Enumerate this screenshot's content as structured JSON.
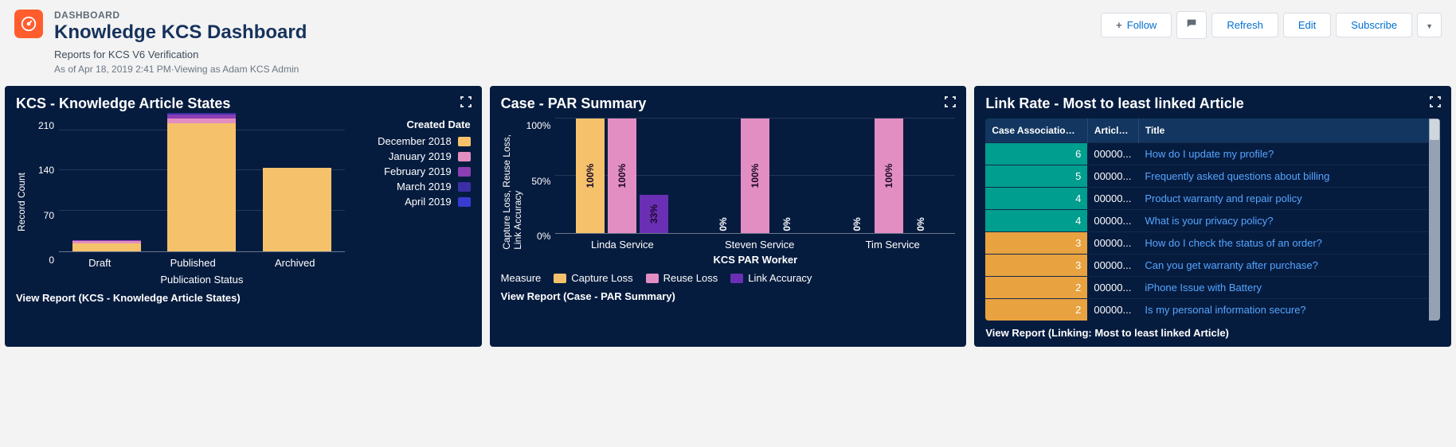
{
  "header": {
    "eyebrow": "DASHBOARD",
    "title": "Knowledge KCS Dashboard",
    "subtitle": "Reports for KCS V6 Verification",
    "timestamp": "As of Apr 18, 2019 2:41 PM·Viewing as Adam KCS Admin"
  },
  "actions": {
    "follow": "Follow",
    "refresh": "Refresh",
    "edit": "Edit",
    "subscribe": "Subscribe"
  },
  "colors": {
    "dec2018": "#f5c26b",
    "jan2019": "#e38ec2",
    "feb2019": "#8b3fb2",
    "mar2019": "#3b2fa6",
    "apr2019": "#3a3bd1",
    "captureLoss": "#f5c26b",
    "reuseLoss": "#e38ec2",
    "linkAccuracy": "#6a2fb5",
    "teal": "#009e8e",
    "orange": "#e8a23f",
    "link": "#56a5ff"
  },
  "panel1": {
    "title": "KCS - Knowledge Article States",
    "legend_title": "Created Date",
    "legend": [
      "December 2018",
      "January 2019",
      "February 2019",
      "March 2019",
      "April 2019"
    ],
    "legend_color_keys": [
      "dec2018",
      "jan2019",
      "feb2019",
      "mar2019",
      "apr2019"
    ],
    "y_label": "Record Count",
    "y_ticks": [
      "210",
      "140",
      "70",
      "0"
    ],
    "y_max": 230,
    "x_label": "Publication Status",
    "categories": [
      "Draft",
      "Published",
      "Archived"
    ],
    "stacks": {
      "Draft": {
        "dec2018": 12,
        "jan2019": 4,
        "feb2019": 2,
        "mar2019": 0,
        "apr2019": 0
      },
      "Published": {
        "dec2018": 200,
        "jan2019": 8,
        "feb2019": 6,
        "mar2019": 2,
        "apr2019": 0
      },
      "Archived": {
        "dec2018": 130,
        "jan2019": 0,
        "feb2019": 0,
        "mar2019": 0,
        "apr2019": 0
      }
    },
    "footer": "View Report (KCS - Knowledge Article States)"
  },
  "panel2": {
    "title": "Case - PAR Summary",
    "y_label": "Capture Loss, Reuse Loss,\nLink Accuracy",
    "y_ticks": [
      "100%",
      "50%",
      "0%"
    ],
    "x_label": "KCS PAR Worker",
    "measure_label": "Measure",
    "measures": [
      "Capture Loss",
      "Reuse Loss",
      "Link Accuracy"
    ],
    "measure_color_keys": [
      "captureLoss",
      "reuseLoss",
      "linkAccuracy"
    ],
    "workers": [
      {
        "name": "Linda Service",
        "captureLoss": 100,
        "reuseLoss": 100,
        "linkAccuracy": 33
      },
      {
        "name": "Steven Service",
        "captureLoss": 0,
        "reuseLoss": 100,
        "linkAccuracy": 0
      },
      {
        "name": "Tim Service",
        "captureLoss": 0,
        "reuseLoss": 100,
        "linkAccuracy": 0
      }
    ],
    "footer": "View Report (Case - PAR Summary)"
  },
  "panel3": {
    "title": "Link Rate - Most to least linked Article",
    "columns": [
      "Case Association ...",
      "Article ...",
      "Title"
    ],
    "col_widths": [
      "128px",
      "64px",
      "auto"
    ],
    "rows": [
      {
        "count": 6,
        "article": "00000...",
        "title": "How do I update my profile?",
        "band": "teal"
      },
      {
        "count": 5,
        "article": "00000...",
        "title": "Frequently asked questions about billing",
        "band": "teal"
      },
      {
        "count": 4,
        "article": "00000...",
        "title": "Product warranty and repair policy",
        "band": "teal"
      },
      {
        "count": 4,
        "article": "00000...",
        "title": "What is your privacy policy?",
        "band": "teal"
      },
      {
        "count": 3,
        "article": "00000...",
        "title": "How do I check the status of an order?",
        "band": "orange"
      },
      {
        "count": 3,
        "article": "00000...",
        "title": "Can you get warranty after purchase?",
        "band": "orange"
      },
      {
        "count": 2,
        "article": "00000...",
        "title": "iPhone Issue with Battery",
        "band": "orange"
      },
      {
        "count": 2,
        "article": "00000...",
        "title": "Is my personal information secure?",
        "band": "orange"
      }
    ],
    "footer": "View Report (Linking: Most to least linked Article)"
  }
}
